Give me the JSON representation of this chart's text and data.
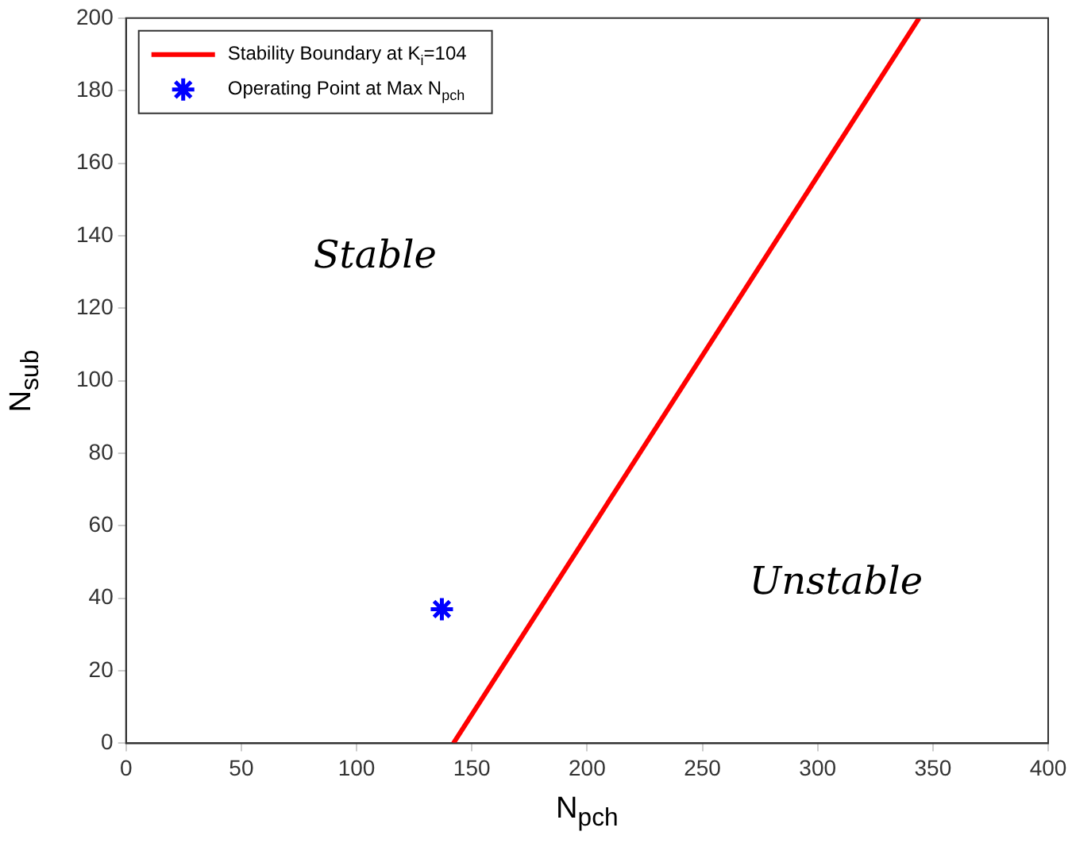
{
  "chart_data": {
    "type": "line",
    "xlabel": "N$_{pch}$",
    "ylabel": "N$_{sub}$",
    "xlim": [
      0,
      400
    ],
    "xticks": [
      0,
      50,
      100,
      150,
      200,
      250,
      300,
      350,
      400
    ],
    "ylim": [
      0,
      200
    ],
    "yticks": [
      0,
      20,
      40,
      60,
      80,
      100,
      120,
      140,
      160,
      180,
      200
    ],
    "grid": false,
    "legend": "top left",
    "annotations": [
      "Stable",
      "Unstable"
    ],
    "series": [
      {
        "name": "Stability Boundary at K$_{i}$=104",
        "color": "#ff0000",
        "marker": "none",
        "x": [
          142,
          344
        ],
        "values": [
          0,
          200
        ]
      },
      {
        "name": "Operating Point at Max N$_{pch}$",
        "type": "scatter",
        "color": "#0000ff",
        "marker": "cross",
        "x": [
          137
        ],
        "values": [
          37
        ]
      }
    ]
  }
}
